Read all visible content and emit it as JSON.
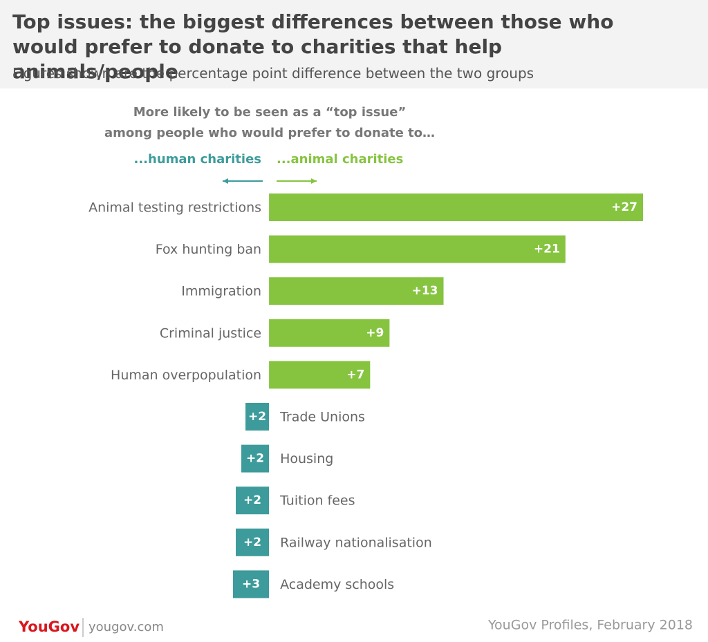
{
  "chart_data": {
    "type": "diverging-bar",
    "title": "Top issues: the biggest differences between those who would prefer to donate to charities that help animals/people",
    "subtitle": "Figures shown are the percentage point difference between the two groups",
    "legend_heading": [
      "More likely to be seen as a “top issue”",
      "among people who would prefer to donate to…"
    ],
    "categories": [
      "Animal testing restrictions",
      "Fox hunting ban",
      "Immigration",
      "Criminal justice",
      "Human overpopulation",
      "Trade Unions",
      "Housing",
      "Tuition fees",
      "Railway nationalisation",
      "Academy schools"
    ],
    "xlim": [
      -2.6,
      27
    ],
    "series": [
      {
        "name": "...human charities",
        "color": "#3d9b9b",
        "direction": "left",
        "values": [
          null,
          null,
          null,
          null,
          null,
          1.7,
          2.0,
          2.4,
          2.4,
          2.6
        ],
        "value_labels": [
          null,
          null,
          null,
          null,
          null,
          "+2",
          "+2",
          "+2",
          "+2",
          "+3"
        ]
      },
      {
        "name": "...animal charities",
        "color": "#86c440",
        "direction": "right",
        "values": [
          27,
          21.4,
          12.6,
          8.7,
          7.3,
          null,
          null,
          null,
          null,
          null
        ],
        "value_labels": [
          "+27",
          "+21",
          "+13",
          "+9",
          "+7",
          null,
          null,
          null,
          null,
          null
        ]
      }
    ],
    "logo": "YouGov",
    "website": "yougov.com",
    "source": "YouGov Profiles, February 2018"
  }
}
